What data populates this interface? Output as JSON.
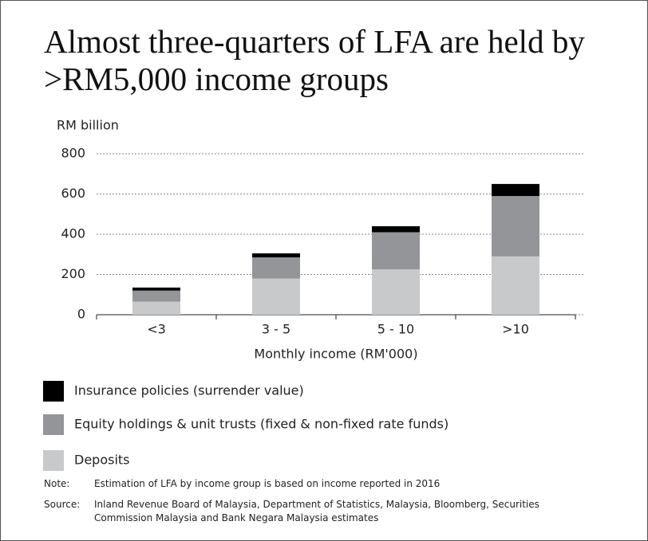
{
  "chart_data": {
    "type": "bar",
    "stacked": true,
    "title": "Almost three-quarters of LFA are held by >RM5,000 income groups",
    "y_axis_label": "RM billion",
    "x_axis_label": "Monthly income (RM'000)",
    "categories": [
      "<3",
      "3 - 5",
      "5 - 10",
      ">10"
    ],
    "series": [
      {
        "name": "Deposits",
        "color": "#c8c9cb",
        "values": [
          65,
          180,
          225,
          290
        ]
      },
      {
        "name": "Equity holdings & unit trusts (fixed & non-fixed rate funds)",
        "color": "#939598",
        "values": [
          55,
          105,
          185,
          300
        ]
      },
      {
        "name": "Insurance policies (surrender value)",
        "color": "#000000",
        "values": [
          15,
          20,
          30,
          60
        ]
      }
    ],
    "ylim": [
      0,
      800
    ],
    "yticks": [
      0,
      200,
      400,
      600,
      800
    ],
    "grid": true,
    "notes": [
      {
        "label": "Note:",
        "text": "Estimation of LFA by income group is based on income reported in 2016"
      },
      {
        "label": "Source:",
        "text": "Inland Revenue Board of Malaysia, Department of Statistics, Malaysia, Bloomberg, Securities Commission Malaysia and Bank Negara Malaysia estimates"
      }
    ]
  }
}
